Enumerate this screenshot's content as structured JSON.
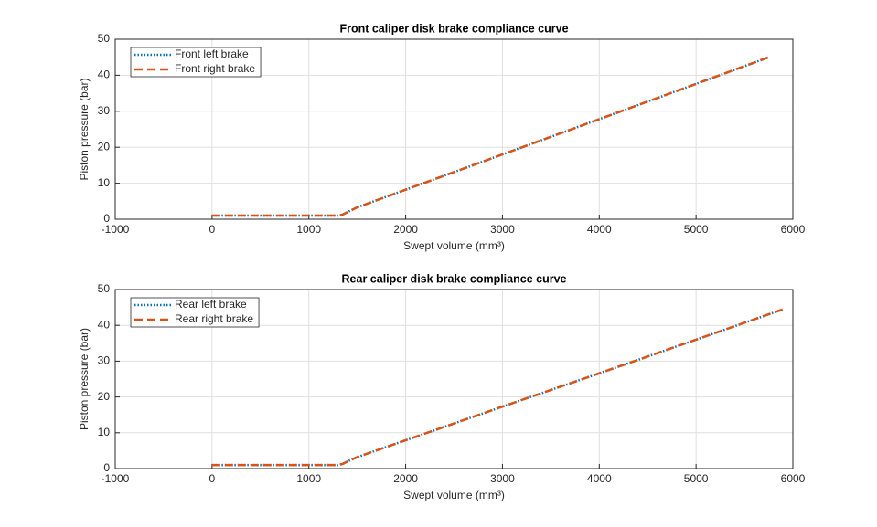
{
  "chart_data": [
    {
      "type": "line",
      "title": "Front caliper disk brake compliance curve",
      "xlabel": "Swept volume (mm³)",
      "ylabel": "Piston pressure (bar)",
      "x": [
        0,
        1000,
        1300,
        1350,
        1400,
        1500,
        2000,
        3000,
        4000,
        5000,
        5750
      ],
      "series": [
        {
          "name": "Front left brake",
          "color": "#0072BD",
          "style": "dotted",
          "values": [
            1,
            1,
            1,
            1.3,
            2,
            3.3,
            8.2,
            18,
            27.8,
            37.6,
            45
          ]
        },
        {
          "name": "Front right brake",
          "color": "#D95319",
          "style": "dashed",
          "values": [
            1,
            1,
            1,
            1.3,
            2,
            3.3,
            8.2,
            18,
            27.8,
            37.6,
            45
          ]
        }
      ],
      "xlim": [
        -1000,
        6000
      ],
      "xticks": [
        -1000,
        0,
        1000,
        2000,
        3000,
        4000,
        5000,
        6000
      ],
      "ylim": [
        0,
        50
      ],
      "yticks": [
        0,
        10,
        20,
        30,
        40,
        50
      ],
      "grid": true,
      "legend": "upper left"
    },
    {
      "type": "line",
      "title": "Rear caliper disk brake compliance curve",
      "xlabel": "Swept volume (mm³)",
      "ylabel": "Piston pressure (bar)",
      "x": [
        0,
        1000,
        1300,
        1350,
        1400,
        1500,
        2000,
        3000,
        4000,
        5000,
        5900
      ],
      "series": [
        {
          "name": "Rear left brake",
          "color": "#0072BD",
          "style": "dotted",
          "values": [
            1,
            1,
            1,
            1.3,
            2,
            3.2,
            7.9,
            17.3,
            26.6,
            36,
            44.5
          ]
        },
        {
          "name": "Rear right brake",
          "color": "#D95319",
          "style": "dashed",
          "values": [
            1,
            1,
            1,
            1.3,
            2,
            3.2,
            7.9,
            17.3,
            26.6,
            36,
            44.5
          ]
        }
      ],
      "xlim": [
        -1000,
        6000
      ],
      "xticks": [
        -1000,
        0,
        1000,
        2000,
        3000,
        4000,
        5000,
        6000
      ],
      "ylim": [
        0,
        50
      ],
      "yticks": [
        0,
        10,
        20,
        30,
        40,
        50
      ],
      "grid": true,
      "legend": "upper left"
    }
  ]
}
